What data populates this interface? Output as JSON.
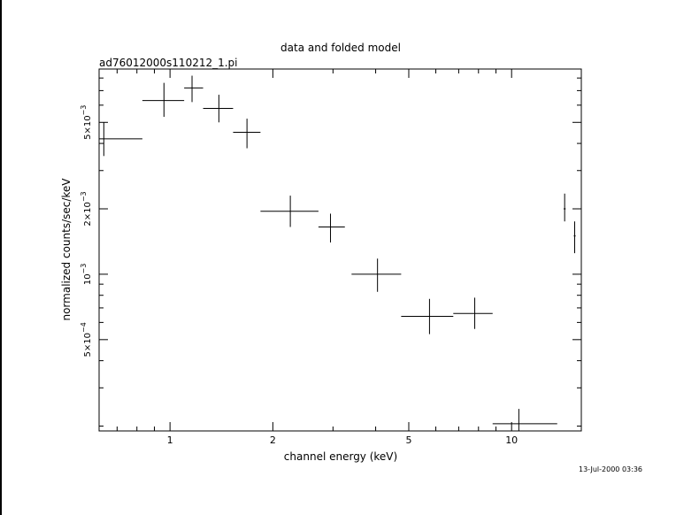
{
  "chart_data": {
    "type": "scatter",
    "title": "data and folded model",
    "subtitle": "ad76012000s110212_1.pi",
    "xlabel": "channel energy (keV)",
    "ylabel": "normalized counts/sec/keV",
    "x_scale": "log",
    "y_scale": "log",
    "xlim": [
      0.62,
      16.0
    ],
    "ylim": [
      0.00019,
      0.0088
    ],
    "x_tick_labels": [
      {
        "value": 1,
        "label": "1"
      },
      {
        "value": 2,
        "label": "2"
      },
      {
        "value": 5,
        "label": "5"
      },
      {
        "value": 10,
        "label": "10"
      }
    ],
    "y_tick_labels": [
      {
        "value": 0.005,
        "mantissa": "5",
        "exponent": "−3"
      },
      {
        "value": 0.002,
        "mantissa": "2",
        "exponent": "−3"
      },
      {
        "value": 0.001,
        "mantissa": "",
        "exponent": "−3"
      },
      {
        "value": 0.0005,
        "mantissa": "5",
        "exponent": "−4"
      }
    ],
    "points": [
      {
        "x": 0.64,
        "xlo": 0.62,
        "xhi": 0.83,
        "y": 0.0042,
        "ylo": 0.0035,
        "yhi": 0.005
      },
      {
        "x": 0.96,
        "xlo": 0.83,
        "xhi": 1.1,
        "y": 0.0063,
        "ylo": 0.0053,
        "yhi": 0.0076
      },
      {
        "x": 1.16,
        "xlo": 1.1,
        "xhi": 1.25,
        "y": 0.0072,
        "ylo": 0.0062,
        "yhi": 0.0082
      },
      {
        "x": 1.39,
        "xlo": 1.25,
        "xhi": 1.53,
        "y": 0.0058,
        "ylo": 0.005,
        "yhi": 0.0067
      },
      {
        "x": 1.68,
        "xlo": 1.53,
        "xhi": 1.84,
        "y": 0.0045,
        "ylo": 0.0038,
        "yhi": 0.0052
      },
      {
        "x": 2.25,
        "xlo": 1.84,
        "xhi": 2.72,
        "y": 0.00195,
        "ylo": 0.00165,
        "yhi": 0.0023
      },
      {
        "x": 2.95,
        "xlo": 2.72,
        "xhi": 3.25,
        "y": 0.00165,
        "ylo": 0.0014,
        "yhi": 0.0019
      },
      {
        "x": 4.05,
        "xlo": 3.4,
        "xhi": 4.75,
        "y": 0.001,
        "ylo": 0.00083,
        "yhi": 0.00118
      },
      {
        "x": 5.75,
        "xlo": 4.75,
        "xhi": 6.75,
        "y": 0.00064,
        "ylo": 0.00053,
        "yhi": 0.00077
      },
      {
        "x": 7.8,
        "xlo": 6.75,
        "xhi": 8.8,
        "y": 0.00066,
        "ylo": 0.00056,
        "yhi": 0.00078
      },
      {
        "x": 10.5,
        "xlo": 8.8,
        "xhi": 13.6,
        "y": 0.000205,
        "ylo": 0.00019,
        "yhi": 0.00024
      },
      {
        "x": 14.3,
        "xlo": 14.2,
        "xhi": 14.4,
        "y": 0.002,
        "ylo": 0.00175,
        "yhi": 0.00235
      },
      {
        "x": 15.3,
        "xlo": 15.2,
        "xhi": 15.4,
        "y": 0.0015,
        "ylo": 0.00125,
        "yhi": 0.00175
      }
    ]
  },
  "footer": {
    "timestamp": "13-Jul-2000 03:36"
  }
}
